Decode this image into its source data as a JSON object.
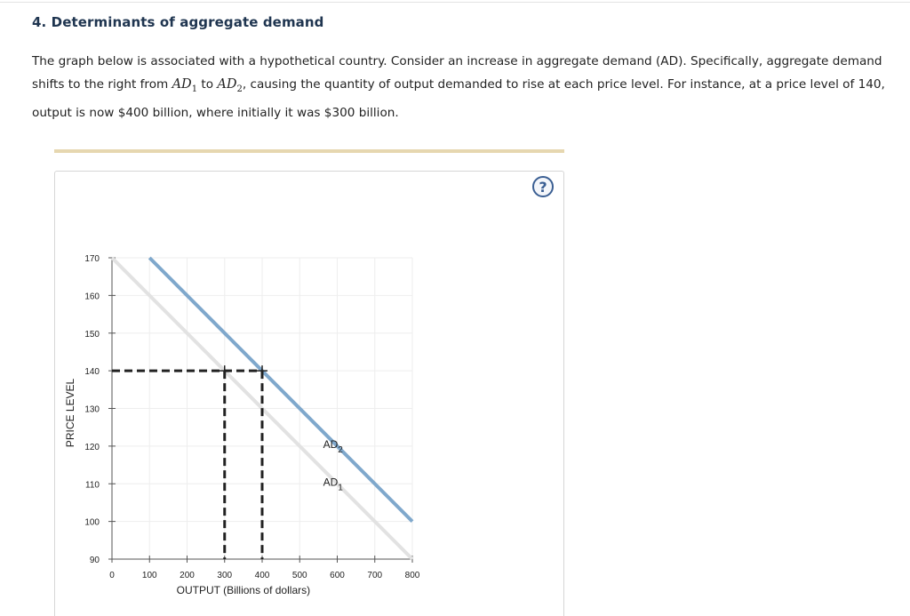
{
  "question": {
    "title": "4. Determinants of aggregate demand",
    "intro_part1": "The graph below is associated with a hypothetical country. Consider an increase in aggregate demand (AD). Specifically, aggregate demand shifts to the right from ",
    "ad1_symbol": "AD",
    "ad1_sub": "1",
    "intro_to": " to ",
    "ad2_symbol": "AD",
    "ad2_sub": "2",
    "intro_part2": ", causing the quantity of output demanded to rise at each price level. For instance, at a price level of 140, output is now $400 billion, where initially it was $300 billion."
  },
  "help_button": {
    "label": "?"
  },
  "colors": {
    "ad1": "#e2e2e2",
    "ad2": "#7fa8cc",
    "dashed": "#222222",
    "grid": "#eeeeee",
    "axis": "#555555"
  },
  "chart_data": {
    "type": "line",
    "xlabel": "OUTPUT (Billions of dollars)",
    "ylabel": "PRICE LEVEL",
    "xlim": [
      0,
      800
    ],
    "ylim": [
      90,
      170
    ],
    "x_ticks": [
      0,
      100,
      200,
      300,
      400,
      500,
      600,
      700,
      800
    ],
    "y_ticks": [
      90,
      100,
      110,
      120,
      130,
      140,
      150,
      160,
      170
    ],
    "grid": true,
    "series": [
      {
        "name": "AD1",
        "label_main": "AD",
        "label_sub": "1",
        "label_at": [
          650,
          110
        ],
        "points": [
          [
            0,
            170
          ],
          [
            800,
            90
          ]
        ]
      },
      {
        "name": "AD2",
        "label_main": "AD",
        "label_sub": "2",
        "label_at": [
          650,
          120
        ],
        "points": [
          [
            100,
            170
          ],
          [
            800,
            100
          ]
        ]
      }
    ],
    "reference_lines": [
      {
        "name": "price-140-guide",
        "points": [
          [
            0,
            140
          ],
          [
            400,
            140
          ]
        ]
      },
      {
        "name": "output-300-guide",
        "points": [
          [
            300,
            140
          ],
          [
            300,
            90
          ]
        ]
      },
      {
        "name": "output-400-guide",
        "points": [
          [
            400,
            140
          ],
          [
            400,
            90
          ]
        ]
      }
    ],
    "markers": [
      {
        "name": "ad1-point",
        "x": 300,
        "y": 140
      },
      {
        "name": "ad2-point",
        "x": 400,
        "y": 140
      }
    ]
  }
}
